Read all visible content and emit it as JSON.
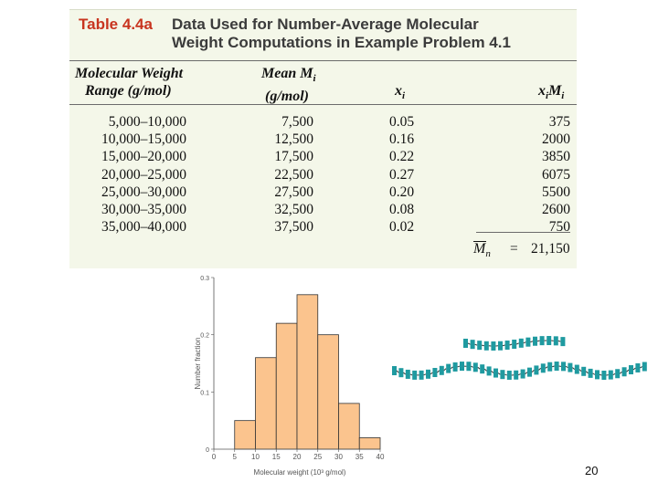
{
  "table": {
    "number": "Table 4.4a",
    "title_line1": "Data Used for Number-Average Molecular",
    "title_line2": "Weight Computations in Example Problem 4.1",
    "headers": {
      "range_line1": "Molecular Weight",
      "range_line2": "Range (g/mol)",
      "mean_line1": "Mean M",
      "mean_sub": "i",
      "mean_line2": "(g/mol)",
      "xi": "x",
      "xi_sub": "i",
      "ximi": "x",
      "ximi_sub1": "i",
      "ximi_m": "M",
      "ximi_sub2": "i"
    },
    "rows": [
      {
        "range": "5,000–10,000",
        "mean": "7,500",
        "xi": "0.05",
        "ximi": "375"
      },
      {
        "range": "10,000–15,000",
        "mean": "12,500",
        "xi": "0.16",
        "ximi": "2000"
      },
      {
        "range": "15,000–20,000",
        "mean": "17,500",
        "xi": "0.22",
        "ximi": "3850"
      },
      {
        "range": "20,000–25,000",
        "mean": "22,500",
        "xi": "0.27",
        "ximi": "6075"
      },
      {
        "range": "25,000–30,000",
        "mean": "27,500",
        "xi": "0.20",
        "ximi": "5500"
      },
      {
        "range": "30,000–35,000",
        "mean": "32,500",
        "xi": "0.08",
        "ximi": "2600"
      },
      {
        "range": "35,000–40,000",
        "mean": "37,500",
        "xi": "0.02",
        "ximi": "750"
      }
    ],
    "total": {
      "symbol": "M",
      "sub": "n",
      "equals": "=",
      "value": "21,150"
    }
  },
  "chart_data": {
    "type": "bar",
    "xlabel": "Molecular weight (10³ g/mol)",
    "ylabel": "Number fraction",
    "xlim": [
      0,
      40
    ],
    "ylim": [
      0,
      0.3
    ],
    "x_ticks": [
      "0",
      "5",
      "10",
      "15",
      "20",
      "25",
      "30",
      "35",
      "40"
    ],
    "y_ticks": [
      "0",
      "0.1",
      "0.2",
      "0.3"
    ],
    "bins": [
      [
        5,
        10
      ],
      [
        10,
        15
      ],
      [
        15,
        20
      ],
      [
        20,
        25
      ],
      [
        25,
        30
      ],
      [
        30,
        35
      ],
      [
        35,
        40
      ]
    ],
    "values": [
      0.05,
      0.16,
      0.22,
      0.27,
      0.2,
      0.08,
      0.02
    ],
    "bar_color": "#fbc48e"
  },
  "colors": {
    "chain": "#1f9aa0",
    "table_title": "#c8341f",
    "panel_bg": "#f4f7e9"
  },
  "page_number": "20"
}
